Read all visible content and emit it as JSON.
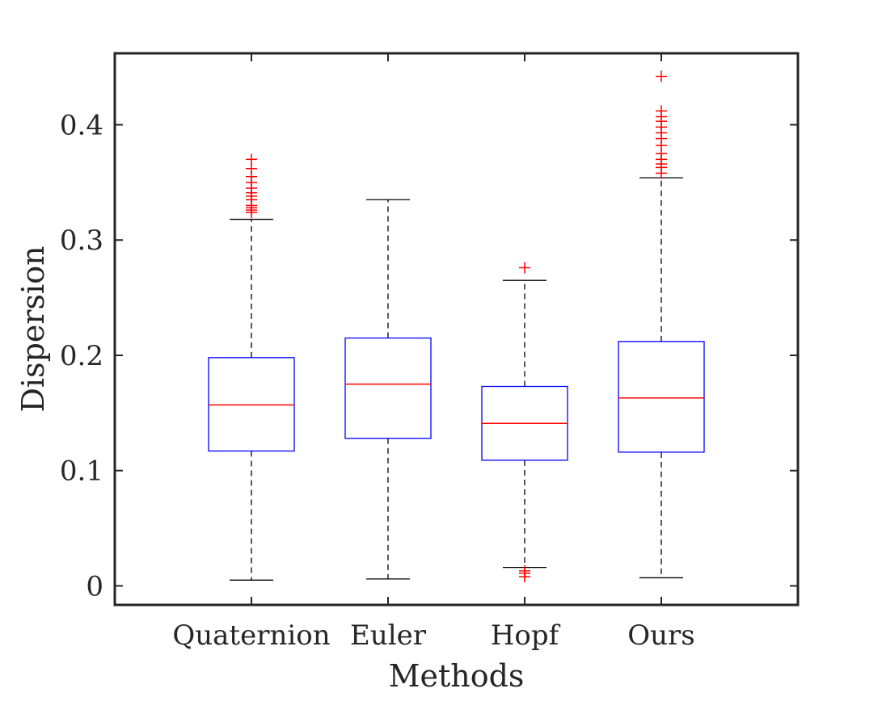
{
  "chart_data": {
    "type": "box",
    "title": "",
    "xlabel": "Methods",
    "ylabel": "Dispersion",
    "categories": [
      "Quaternion",
      "Euler",
      "Hopf",
      "Ours"
    ],
    "ylim": [
      -0.0165,
      0.462
    ],
    "yticks": [
      0,
      0.1,
      0.2,
      0.3,
      0.4
    ],
    "ytick_labels": [
      "0",
      "0.1",
      "0.2",
      "0.3",
      "0.4"
    ],
    "grid": false,
    "legend": "none",
    "colors": {
      "box": "#0000ff",
      "median": "#ff0000",
      "whisker": "#000000",
      "outlier": "#ff0000",
      "axes": "#262626"
    },
    "boxes": [
      {
        "category": "Quaternion",
        "whisker_low": 0.005,
        "q1": 0.117,
        "median": 0.157,
        "q3": 0.198,
        "whisker_high": 0.318,
        "outliers": [
          0.324,
          0.326,
          0.328,
          0.33,
          0.335,
          0.338,
          0.341,
          0.345,
          0.35,
          0.355,
          0.362,
          0.37
        ]
      },
      {
        "category": "Euler",
        "whisker_low": 0.006,
        "q1": 0.128,
        "median": 0.175,
        "q3": 0.215,
        "whisker_high": 0.335,
        "outliers": []
      },
      {
        "category": "Hopf",
        "whisker_low": 0.016,
        "q1": 0.109,
        "median": 0.141,
        "q3": 0.173,
        "whisker_high": 0.265,
        "outliers": [
          0.008,
          0.011,
          0.013,
          0.276
        ]
      },
      {
        "category": "Ours",
        "whisker_low": 0.007,
        "q1": 0.116,
        "median": 0.163,
        "q3": 0.212,
        "whisker_high": 0.354,
        "outliers": [
          0.358,
          0.363,
          0.366,
          0.37,
          0.375,
          0.382,
          0.388,
          0.393,
          0.398,
          0.403,
          0.407,
          0.412,
          0.442
        ]
      }
    ]
  }
}
